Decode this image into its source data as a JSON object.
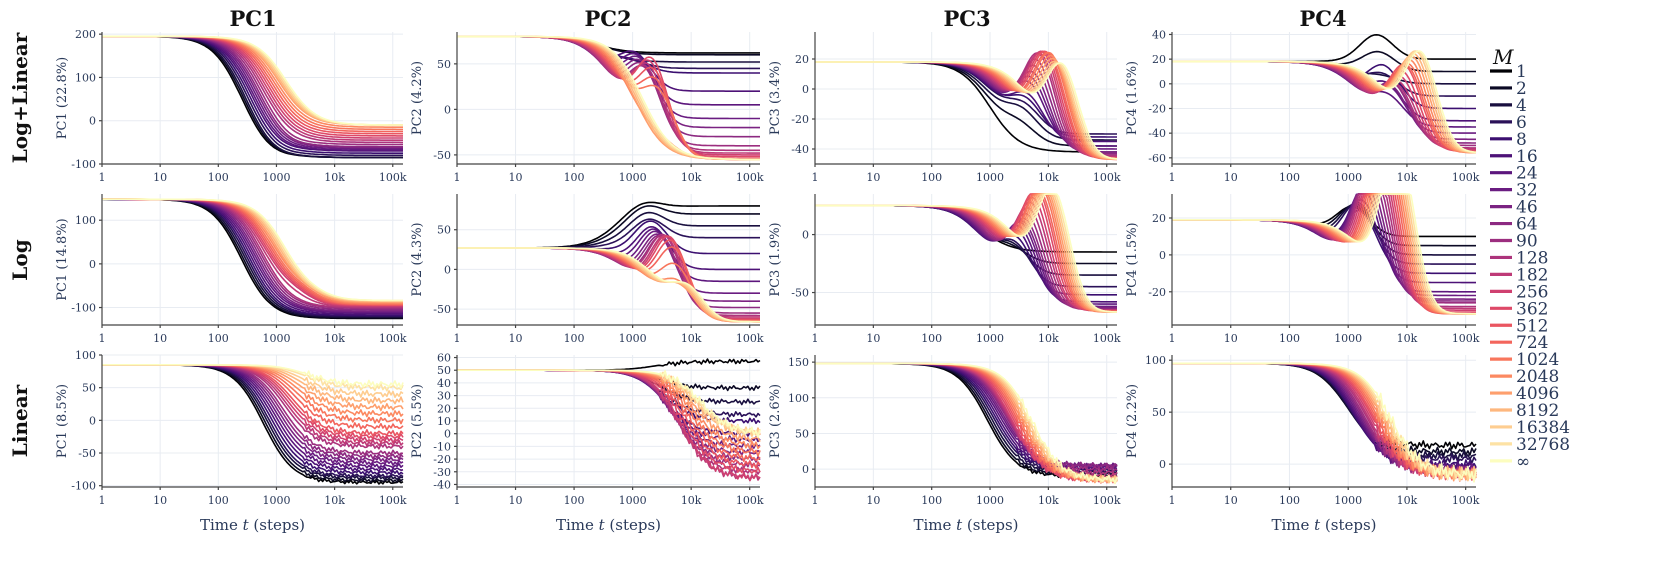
{
  "chart_data": {
    "type": "line",
    "columns": [
      "PC1",
      "PC2",
      "PC3",
      "PC4"
    ],
    "rows": [
      "Log+Linear",
      "Log",
      "Linear"
    ],
    "xlabel_prefix": "Time ",
    "xlabel_var": "t",
    "xlabel_suffix": " (steps)",
    "x_ticks": [
      1,
      10,
      100,
      1000,
      10000,
      100000
    ],
    "x_tick_labels": [
      "1",
      "10",
      "100",
      "1000",
      "10k",
      "100k"
    ],
    "xlim": [
      1,
      150000
    ],
    "legend": {
      "title": "M",
      "labels": [
        "1",
        "2",
        "4",
        "6",
        "8",
        "16",
        "24",
        "32",
        "46",
        "64",
        "90",
        "128",
        "182",
        "256",
        "362",
        "512",
        "724",
        "1024",
        "2048",
        "4096",
        "8192",
        "16384",
        "32768",
        "∞"
      ],
      "colors": [
        "#000004",
        "#0b0924",
        "#190f3f",
        "#2a1158",
        "#3b0f70",
        "#4d1277",
        "#5c167d",
        "#6a1c81",
        "#7b2382",
        "#8c2981",
        "#9c2e7f",
        "#ad347c",
        "#be3a77",
        "#cf4070",
        "#de4968",
        "#ea5661",
        "#f3655c",
        "#f8765c",
        "#fc8961",
        "#fe9f6d",
        "#feb77e",
        "#fecd90",
        "#fde2a4",
        "#fcfdbf"
      ]
    },
    "panels": [
      [
        {
          "ylabel": "PC1 (22.8%)",
          "ylim": [
            -100,
            205
          ],
          "yticks": [
            -100,
            0,
            100,
            200
          ],
          "y0": 195,
          "w": 250,
          "yc": [
            -85,
            -85,
            -85,
            -80,
            -75,
            -70,
            -68,
            -65,
            -62,
            -60,
            -55,
            -50,
            -45,
            -40,
            -35,
            -30,
            -25,
            -20,
            -15,
            -10,
            -10,
            -10,
            -10,
            -10
          ],
          "yd": [
            -5,
            -5,
            -5,
            -5,
            -5,
            -5,
            -5,
            -5,
            -5,
            -5,
            -5,
            0,
            0,
            0,
            0,
            0,
            0,
            0,
            0,
            0,
            0,
            0,
            0,
            0
          ],
          "noise": 0
        },
        {
          "ylabel": "PC2 (4.2%)",
          "ylim": [
            -60,
            85
          ],
          "yticks": [
            -50,
            0,
            50
          ],
          "y0": 80,
          "w": 250,
          "yc": [
            62,
            60,
            52,
            45,
            40,
            20,
            5,
            -10,
            -20,
            -30,
            -40,
            -45,
            -48,
            -50,
            -52,
            -54,
            -55,
            -55,
            -55,
            -55,
            -55,
            -55,
            -55,
            -55
          ],
          "yd": [
            0,
            0,
            0,
            5,
            10,
            35,
            45,
            55,
            60,
            65,
            70,
            75,
            80,
            85,
            90,
            80,
            70,
            60,
            10,
            0,
            0,
            0,
            0,
            0
          ],
          "noise": 0
        },
        {
          "ylabel": "PC3 (3.4%)",
          "ylim": [
            -50,
            38
          ],
          "yticks": [
            -40,
            -20,
            0,
            20
          ],
          "y0": 18,
          "w": 1000,
          "yc": [
            -42,
            -38,
            -34,
            -30,
            -32,
            -35,
            -38,
            -40,
            -42,
            -43,
            -44,
            -45,
            -45,
            -46,
            -46,
            -46,
            -47,
            -47,
            -47,
            -47,
            -47,
            -47,
            -47,
            -47
          ],
          "yd": [
            0,
            10,
            15,
            15,
            20,
            25,
            35,
            40,
            45,
            50,
            55,
            60,
            60,
            62,
            62,
            62,
            62,
            62,
            60,
            58,
            56,
            55,
            55,
            55
          ],
          "noise": 0
        },
        {
          "ylabel": "PC4 (1.6%)",
          "ylim": [
            -65,
            42
          ],
          "yticks": [
            -60,
            -40,
            -20,
            0,
            20,
            40
          ],
          "y0": 18,
          "w": 1000,
          "yc": [
            20,
            10,
            0,
            -10,
            -20,
            -30,
            -35,
            -40,
            -45,
            -48,
            -50,
            -52,
            -53,
            -54,
            -55,
            -55,
            -55,
            -56,
            -56,
            -56,
            -56,
            -56,
            -56,
            -56
          ],
          "yd": [
            20,
            15,
            5,
            15,
            30,
            25,
            20,
            30,
            35,
            40,
            40,
            42,
            45,
            50,
            55,
            60,
            60,
            62,
            65,
            68,
            70,
            72,
            72,
            72
          ],
          "noise": 0
        }
      ],
      [
        {
          "ylabel": "PC1 (14.8%)",
          "ylim": [
            -140,
            160
          ],
          "yticks": [
            -100,
            0,
            100
          ],
          "y0": 148,
          "w": 250,
          "yc": [
            -125,
            -124,
            -122,
            -120,
            -118,
            -115,
            -112,
            -110,
            -108,
            -105,
            -102,
            -100,
            -98,
            -96,
            -95,
            -94,
            -93,
            -92,
            -90,
            -88,
            -86,
            -85,
            -84,
            -84
          ],
          "yd": [
            0,
            0,
            0,
            0,
            0,
            0,
            0,
            0,
            0,
            0,
            0,
            0,
            10,
            15,
            15,
            15,
            15,
            15,
            15,
            10,
            8,
            5,
            5,
            5
          ],
          "noise": 0
        },
        {
          "ylabel": "PC2 (4.3%)",
          "ylim": [
            -70,
            95
          ],
          "yticks": [
            -50,
            0,
            50
          ],
          "y0": 27,
          "w": 500,
          "yc": [
            80,
            70,
            55,
            40,
            20,
            0,
            -15,
            -30,
            -40,
            -48,
            -55,
            -58,
            -60,
            -62,
            -63,
            -64,
            -65,
            -66,
            -66,
            -66,
            -66,
            -66,
            -66,
            -66
          ],
          "yd": [
            10,
            15,
            20,
            25,
            40,
            50,
            60,
            70,
            75,
            80,
            85,
            90,
            90,
            92,
            92,
            88,
            80,
            60,
            40,
            35,
            35,
            35,
            35,
            35
          ],
          "noise": 0
        },
        {
          "ylabel": "PC3 (1.9%)",
          "ylim": [
            -78,
            35
          ],
          "yticks": [
            -50,
            0
          ],
          "y0": 25,
          "w": 700,
          "yc": [
            -15,
            -25,
            -35,
            -45,
            -52,
            -58,
            -60,
            -62,
            -63,
            -64,
            -65,
            -65,
            -65,
            -66,
            -66,
            -66,
            -66,
            -67,
            -67,
            -67,
            -67,
            -67,
            -67,
            -67
          ],
          "yd": [
            0,
            10,
            20,
            30,
            40,
            50,
            55,
            60,
            62,
            65,
            70,
            75,
            80,
            85,
            90,
            92,
            92,
            95,
            95,
            95,
            95,
            95,
            95,
            95
          ],
          "noise": 0
        },
        {
          "ylabel": "PC4 (1.5%)",
          "ylim": [
            -38,
            33
          ],
          "yticks": [
            -20,
            0,
            20
          ],
          "y0": 19,
          "w": 400,
          "yc": [
            10,
            5,
            0,
            -5,
            -10,
            -15,
            -20,
            -22,
            -24,
            -25,
            -26,
            -28,
            -29,
            -30,
            -31,
            -32,
            -32,
            -32,
            -32,
            -32,
            -32,
            -32,
            -32,
            -32
          ],
          "yd": [
            15,
            20,
            25,
            30,
            30,
            40,
            50,
            55,
            60,
            65,
            70,
            75,
            78,
            80,
            82,
            84,
            85,
            85,
            85,
            85,
            85,
            85,
            85,
            85
          ],
          "noise": 0
        }
      ],
      [
        {
          "ylabel": "PC1 (8.5%)",
          "ylim": [
            -102,
            100
          ],
          "yticks": [
            -100,
            -50,
            0,
            50,
            100
          ],
          "y0": 85,
          "w": 600,
          "yc": [
            -95,
            -92,
            -88,
            -85,
            -80,
            -75,
            -70,
            -65,
            -60,
            -55,
            -50,
            -40,
            -35,
            -30,
            -25,
            -20,
            -10,
            0,
            10,
            20,
            30,
            40,
            50,
            55
          ],
          "yd": [
            0,
            0,
            0,
            0,
            0,
            0,
            0,
            0,
            0,
            0,
            0,
            0,
            0,
            0,
            0,
            0,
            0,
            0,
            0,
            0,
            0,
            0,
            0,
            0
          ],
          "noise": 3
        },
        {
          "ylabel": "PC2 (5.5%)",
          "ylim": [
            -42,
            62
          ],
          "yticks": [
            -40,
            -30,
            -20,
            -10,
            0,
            10,
            20,
            30,
            40,
            50,
            60
          ],
          "y0": 50,
          "w": 2500,
          "yc": [
            57,
            36,
            25,
            15,
            10,
            0,
            -5,
            -10,
            -15,
            -20,
            -25,
            -30,
            -35,
            -35,
            -30,
            -25,
            -20,
            -15,
            -10,
            -5,
            0,
            0,
            0,
            0
          ],
          "yd": [
            0,
            0,
            0,
            0,
            0,
            0,
            0,
            0,
            0,
            0,
            0,
            0,
            0,
            0,
            0,
            0,
            0,
            0,
            0,
            0,
            0,
            0,
            0,
            0
          ],
          "noise": 2
        },
        {
          "ylabel": "PC3 (2.6%)",
          "ylim": [
            -25,
            160
          ],
          "yticks": [
            0,
            50,
            100,
            150
          ],
          "y0": 148,
          "w": 900,
          "yc": [
            -10,
            -8,
            -5,
            -2,
            0,
            2,
            4,
            5,
            5,
            5,
            0,
            -5,
            -10,
            -15,
            -15,
            -15,
            -15,
            -15,
            -15,
            -15,
            -15,
            -15,
            -15,
            -15
          ],
          "yd": [
            0,
            0,
            0,
            0,
            0,
            0,
            0,
            0,
            0,
            0,
            0,
            0,
            0,
            0,
            0,
            0,
            0,
            0,
            0,
            0,
            0,
            0,
            0,
            0
          ],
          "noise": 3
        },
        {
          "ylabel": "PC4 (2.2%)",
          "ylim": [
            -22,
            105
          ],
          "yticks": [
            0,
            50,
            100
          ],
          "y0": 97,
          "w": 900,
          "yc": [
            18,
            12,
            8,
            5,
            0,
            -2,
            -4,
            -5,
            -6,
            -7,
            -8,
            -8,
            -9,
            -9,
            -9,
            -10,
            -10,
            -10,
            -10,
            -10,
            -10,
            -10,
            -10,
            -10
          ],
          "yd": [
            0,
            0,
            0,
            0,
            0,
            0,
            0,
            0,
            0,
            0,
            0,
            0,
            0,
            0,
            0,
            0,
            0,
            0,
            0,
            0,
            0,
            0,
            0,
            0
          ],
          "noise": 4
        }
      ]
    ]
  }
}
